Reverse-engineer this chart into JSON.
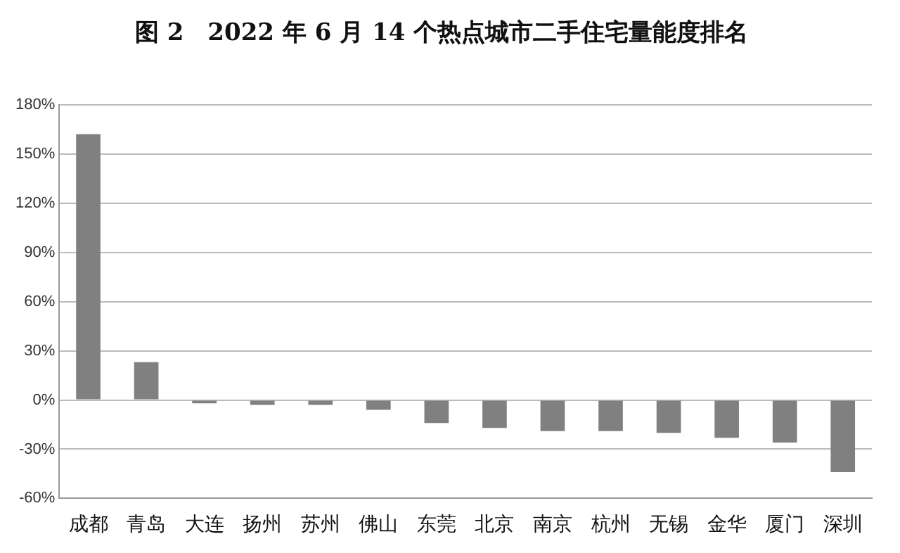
{
  "chart_data": {
    "type": "bar",
    "title": "图 2　2022 年 6 月 14 个热点城市二手住宅量能度排名",
    "categories": [
      "成都",
      "青岛",
      "大连",
      "扬州",
      "苏州",
      "佛山",
      "东莞",
      "北京",
      "南京",
      "杭州",
      "无锡",
      "金华",
      "厦门",
      "深圳"
    ],
    "values": [
      162,
      23,
      -2,
      -3,
      -3,
      -6,
      -14,
      -17,
      -19,
      -19,
      -20,
      -23,
      -26,
      -44
    ],
    "color": "#808080",
    "ylim": [
      -60,
      180
    ],
    "yticks": [
      {
        "value": -60,
        "label": "-60%"
      },
      {
        "value": -30,
        "label": "-30%"
      },
      {
        "value": 0,
        "label": "0%"
      },
      {
        "value": 30,
        "label": "30%"
      },
      {
        "value": 60,
        "label": "60%"
      },
      {
        "value": 90,
        "label": "90%"
      },
      {
        "value": 120,
        "label": "120%"
      },
      {
        "value": 150,
        "label": "150%"
      },
      {
        "value": 180,
        "label": "180%"
      }
    ],
    "grid": "y",
    "legend": false
  }
}
